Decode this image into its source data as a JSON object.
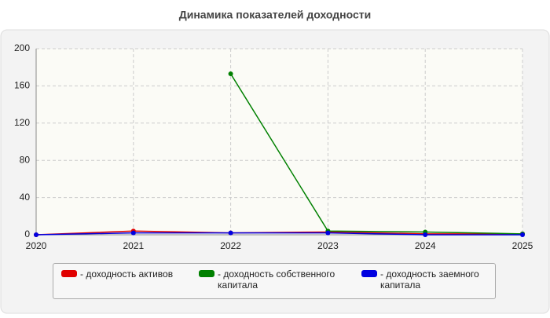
{
  "chart_data": {
    "type": "line",
    "title": "Динамика показателей доходности",
    "x": [
      2020,
      2021,
      2022,
      2023,
      2024,
      2025
    ],
    "series": [
      {
        "name": "доходность активов",
        "color": "#e00000",
        "values": [
          0,
          4,
          2,
          3,
          1,
          1
        ]
      },
      {
        "name": "доходность собственного капитала",
        "color": "#008000",
        "values": [
          null,
          null,
          173,
          4,
          3,
          1
        ]
      },
      {
        "name": "доходность заемного капитала",
        "color": "#0000e0",
        "values": [
          0,
          2,
          2,
          2,
          0,
          0
        ]
      }
    ],
    "xlim": [
      2020,
      2025
    ],
    "xticks": [
      2020,
      2021,
      2022,
      2023,
      2024,
      2025
    ],
    "ylim": [
      0,
      200
    ],
    "yticks": [
      0,
      40,
      80,
      120,
      160,
      200
    ],
    "grid": true
  }
}
